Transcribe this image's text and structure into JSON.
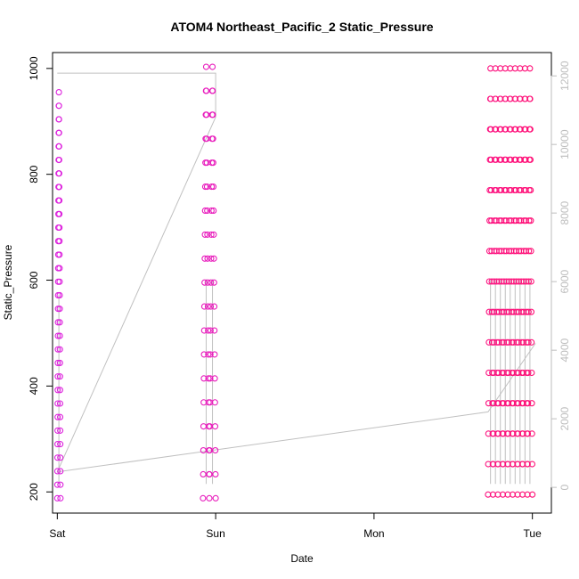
{
  "chart_data": {
    "type": "scatter",
    "title": "ATOM4 Northeast_Pacific_2 Static_Pressure",
    "xlabel": "Date",
    "ylabel": "Static_Pressure",
    "x_ticks": [
      "Sat",
      "Sun",
      "Mon",
      "Tue"
    ],
    "x_range_days": [
      -0.03,
      3.12
    ],
    "ylim": [
      160,
      1030
    ],
    "y_ticks": [
      200,
      400,
      600,
      800,
      1000
    ],
    "y2_ticks": [
      0,
      2000,
      4000,
      6000,
      8000,
      10000,
      12000
    ],
    "y2lim": [
      -750,
      12680
    ],
    "grid": false,
    "colors": {
      "point_start": "#dd22dd",
      "point_end": "#ff1177",
      "line": "#c0c0c0",
      "axis": "#000000",
      "right_axis": "#bdbdbd"
    },
    "series": [
      {
        "bursts": [
          {
            "start": 0.0,
            "end": 0.02,
            "min": 188,
            "max": 955,
            "cycles": 1
          },
          {
            "start": 0.92,
            "end": 1.0,
            "min": 188,
            "max": 1003,
            "cycles": 2
          },
          {
            "start": 2.72,
            "end": 3.0,
            "min": 195,
            "max": 1000,
            "cycles": 9
          }
        ]
      }
    ],
    "secondary_line": [
      {
        "x": 0.0,
        "y": 12080
      },
      {
        "x": 1.0,
        "y": 12080
      },
      {
        "x": 1.0,
        "y": 10800
      },
      {
        "x": 0.0,
        "y": 450
      },
      {
        "x": 2.72,
        "y": 2200
      },
      {
        "x": 3.02,
        "y": 4200
      }
    ]
  }
}
